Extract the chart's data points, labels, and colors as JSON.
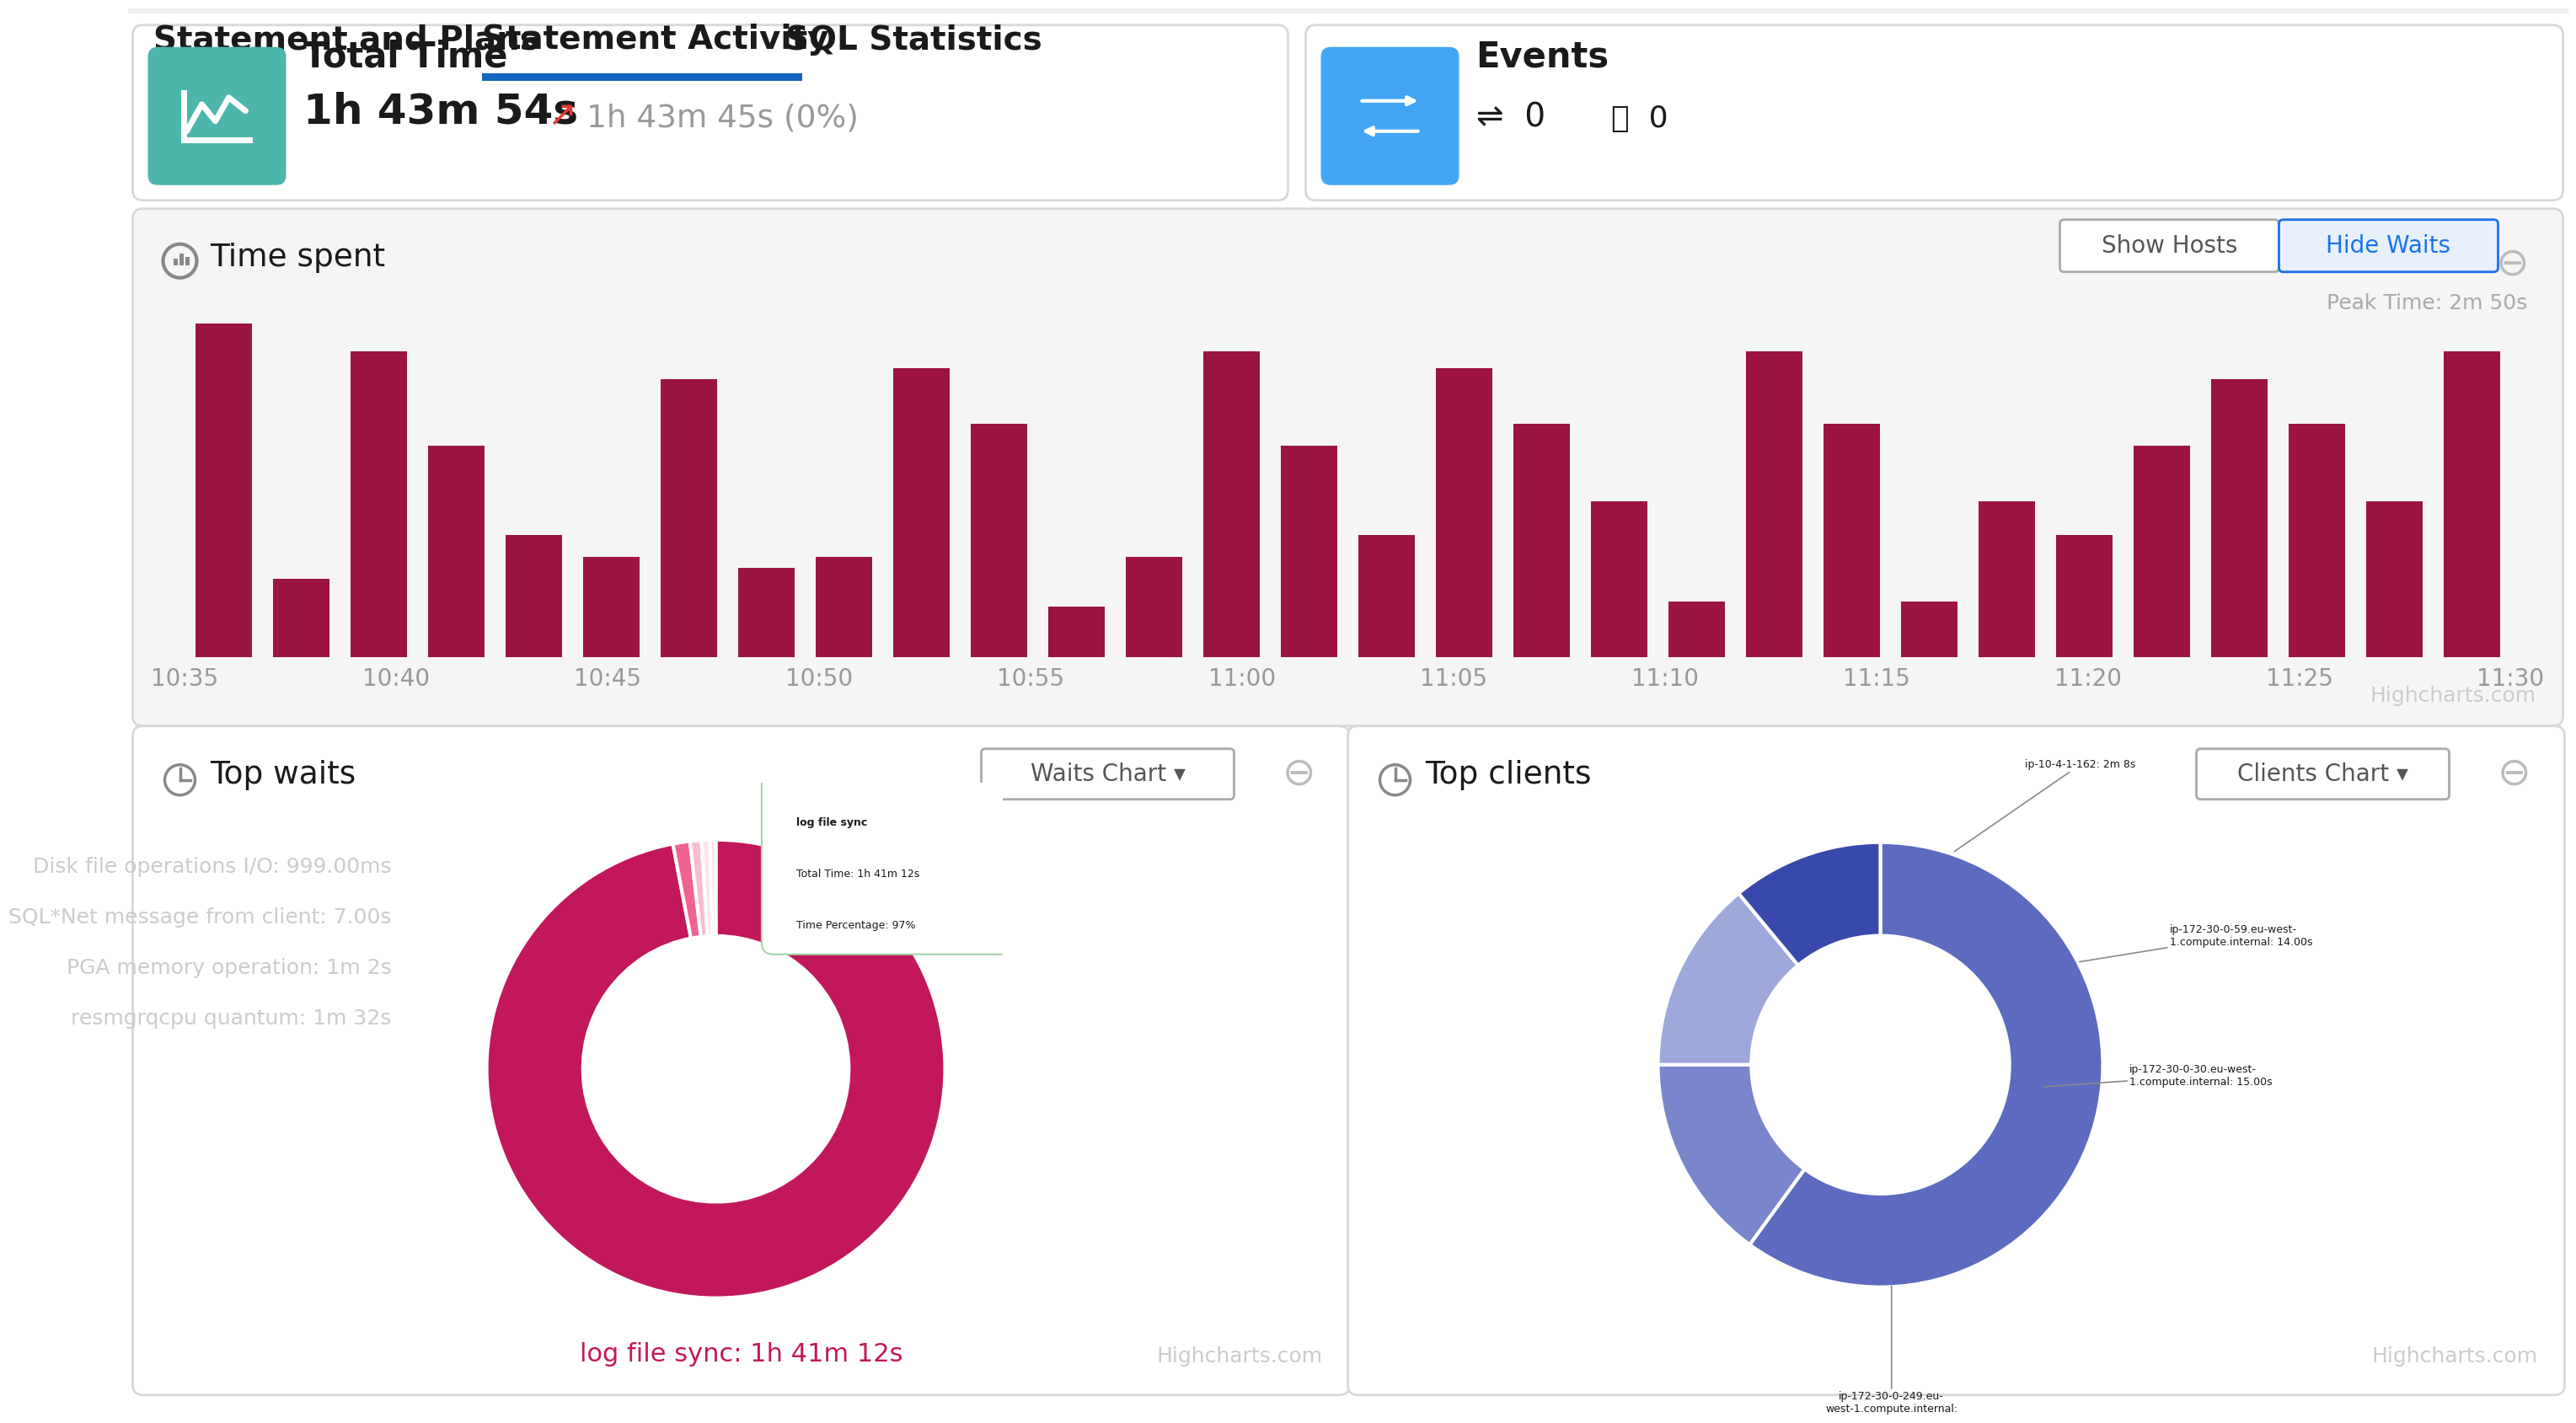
{
  "tab_labels": [
    "Statement and Plans",
    "Statement Activity",
    "SQL Statistics"
  ],
  "active_tab_idx": 1,
  "tab_underline_color": "#1565c0",
  "total_time_label": "Total Time",
  "total_time_value": "1h 43m 54s",
  "total_time_prev": "1h 43m 45s (0%)",
  "icon_teal": "#4DB6AC",
  "icon_blue": "#42A5F5",
  "events_label": "Events",
  "time_spent_title": "Time spent",
  "show_hosts_btn": "Show Hosts",
  "hide_waits_btn": "Hide Waits",
  "peak_time_label": "Peak Time: 2m 50s",
  "highcharts_text": "Highcharts.com",
  "bar_color_dark": "#9B1444",
  "bar_heights": [
    60,
    14,
    55,
    38,
    22,
    18,
    50,
    16,
    18,
    52,
    42,
    9,
    18,
    55,
    38,
    22,
    52,
    42,
    28,
    10,
    55,
    42,
    10,
    28,
    22,
    38,
    50,
    42,
    28,
    55
  ],
  "tick_labels": [
    "10:35",
    "10:40",
    "10:45",
    "10:50",
    "10:55",
    "11:00",
    "11:05",
    "11:10",
    "11:15",
    "11:20",
    "11:25",
    "11:30"
  ],
  "top_waits_title": "Top waits",
  "waits_chart_btn": "Waits Chart ▾",
  "waits_labels": [
    "Disk file operations I/O: 999.00ms",
    "SQL*Net message from client: 7.00s",
    "PGA memory operation: 1m 2s",
    "resmgrqcpu quantum: 1m 32s"
  ],
  "waits_pie_sizes": [
    97,
    1.2,
    0.8,
    0.6,
    0.4
  ],
  "waits_pie_colors": [
    "#C2185B",
    "#f06292",
    "#f8bbd0",
    "#fce4ec",
    "#fce4ec"
  ],
  "waits_tooltip_title": "log file sync",
  "waits_tooltip_total": "Total Time: 1h 41m 12s",
  "waits_tooltip_pct": "Time Percentage: 97%",
  "waits_bottom_label": "log file sync: 1h 41m 12s",
  "top_clients_title": "Top clients",
  "clients_chart_btn": "Clients Chart ▾",
  "clients_pie_sizes": [
    60,
    15,
    14,
    11
  ],
  "clients_pie_colors": [
    "#5c6bc0",
    "#7986cb",
    "#9fa8da",
    "#3949ab"
  ],
  "clients_labels": [
    "ip-10-4-1-162: 2m 8s",
    "ip-172-30-0-59.eu-west-\n1.compute.internal: 14.00s",
    "ip-172-30-0-30.eu-west-\n1.compute.internal: 15.00s",
    "ip-172-30-0-249.eu-\nwest-1.compute.internal:"
  ],
  "bg_color": "#ffffff",
  "border_color": "#d8d8d8",
  "text_dark": "#1a1a1a",
  "text_gray": "#999999",
  "panel_bg": "#f5f5f5"
}
